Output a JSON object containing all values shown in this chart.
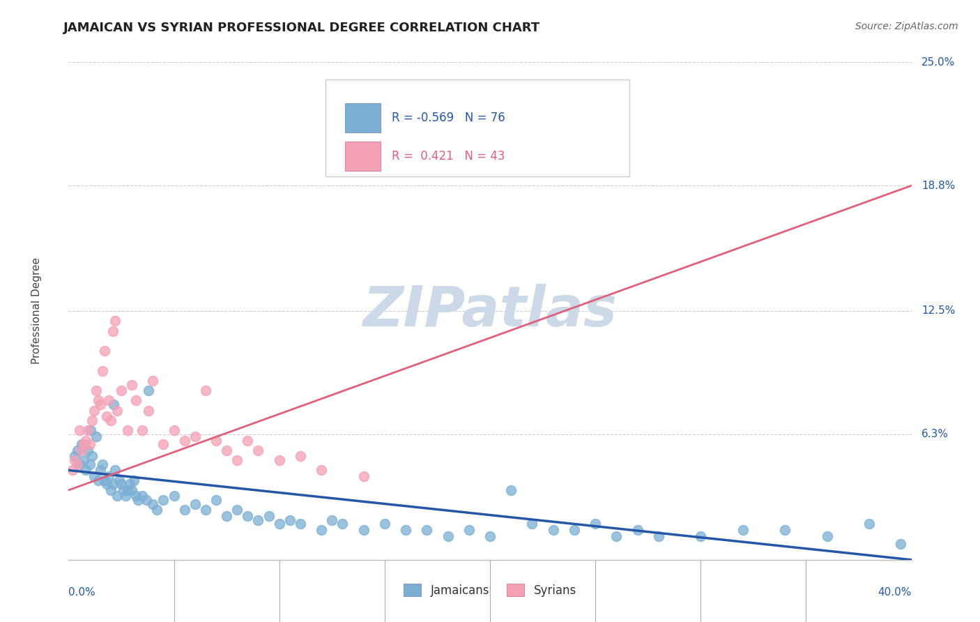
{
  "title": "JAMAICAN VS SYRIAN PROFESSIONAL DEGREE CORRELATION CHART",
  "source_text": "Source: ZipAtlas.com",
  "ylabel": "Professional Degree",
  "xlim": [
    0.0,
    40.0
  ],
  "ylim": [
    0.0,
    25.0
  ],
  "ytick_values": [
    6.3,
    12.5,
    18.8,
    25.0
  ],
  "ytick_labels": [
    "6.3%",
    "12.5%",
    "18.8%",
    "25.0%"
  ],
  "jamaican_R": -0.569,
  "jamaican_N": 76,
  "syrian_R": 0.421,
  "syrian_N": 43,
  "jamaican_color": "#7bafd4",
  "syrian_color": "#f4a0b5",
  "jamaican_line_color": "#2457a8",
  "syrian_line_color": "#e0607a",
  "legend_jamaican": "Jamaicans",
  "legend_syrian": "Syrians",
  "watermark_color": "#ccd9e8",
  "background_color": "#ffffff",
  "grid_color": "#cccccc",
  "title_color": "#222222",
  "axis_label_color": "#2457a8",
  "jamaican_x": [
    0.3,
    0.5,
    0.6,
    0.7,
    0.8,
    0.9,
    1.0,
    1.1,
    1.2,
    1.3,
    1.4,
    1.5,
    1.6,
    1.7,
    1.8,
    1.9,
    2.0,
    2.1,
    2.2,
    2.3,
    2.4,
    2.5,
    2.6,
    2.7,
    2.8,
    2.9,
    3.0,
    3.1,
    3.2,
    3.3,
    3.5,
    3.7,
    4.0,
    4.2,
    4.5,
    5.0,
    5.5,
    6.0,
    6.5,
    7.0,
    7.5,
    8.0,
    8.5,
    9.0,
    9.5,
    10.0,
    10.5,
    11.0,
    12.0,
    12.5,
    13.0,
    14.0,
    15.0,
    16.0,
    17.0,
    18.0,
    19.0,
    20.0,
    21.0,
    22.0,
    23.0,
    24.0,
    25.0,
    26.0,
    27.0,
    28.0,
    30.0,
    32.0,
    34.0,
    36.0,
    38.0,
    39.5,
    0.4,
    1.05,
    2.15,
    3.8
  ],
  "jamaican_y": [
    5.2,
    4.8,
    5.8,
    5.0,
    4.5,
    5.5,
    4.8,
    5.2,
    4.2,
    6.2,
    4.0,
    4.5,
    4.8,
    4.0,
    3.8,
    4.2,
    3.5,
    3.8,
    4.5,
    3.2,
    4.0,
    3.8,
    3.5,
    3.2,
    3.5,
    3.8,
    3.5,
    4.0,
    3.2,
    3.0,
    3.2,
    3.0,
    2.8,
    2.5,
    3.0,
    3.2,
    2.5,
    2.8,
    2.5,
    3.0,
    2.2,
    2.5,
    2.2,
    2.0,
    2.2,
    1.8,
    2.0,
    1.8,
    1.5,
    2.0,
    1.8,
    1.5,
    1.8,
    1.5,
    1.5,
    1.2,
    1.5,
    1.2,
    3.5,
    1.8,
    1.5,
    1.5,
    1.8,
    1.2,
    1.5,
    1.2,
    1.2,
    1.5,
    1.5,
    1.2,
    1.8,
    0.8,
    5.5,
    6.5,
    7.8,
    8.5
  ],
  "syrian_x": [
    0.2,
    0.3,
    0.4,
    0.5,
    0.6,
    0.7,
    0.8,
    0.9,
    1.0,
    1.1,
    1.2,
    1.3,
    1.4,
    1.5,
    1.6,
    1.7,
    1.8,
    1.9,
    2.0,
    2.1,
    2.2,
    2.3,
    2.5,
    2.8,
    3.0,
    3.2,
    3.5,
    3.8,
    4.0,
    4.5,
    5.0,
    5.5,
    6.0,
    6.5,
    7.0,
    7.5,
    8.0,
    8.5,
    9.0,
    10.0,
    11.0,
    12.0,
    14.0
  ],
  "syrian_y": [
    4.5,
    5.0,
    4.8,
    6.5,
    5.5,
    5.8,
    6.0,
    6.5,
    5.8,
    7.0,
    7.5,
    8.5,
    8.0,
    7.8,
    9.5,
    10.5,
    7.2,
    8.0,
    7.0,
    11.5,
    12.0,
    7.5,
    8.5,
    6.5,
    8.8,
    8.0,
    6.5,
    7.5,
    9.0,
    5.8,
    6.5,
    6.0,
    6.2,
    8.5,
    6.0,
    5.5,
    5.0,
    6.0,
    5.5,
    5.0,
    5.2,
    4.5,
    4.2
  ],
  "jamaican_line_y0": 4.5,
  "jamaican_line_y1": 0.0,
  "syrian_line_y0": 3.5,
  "syrian_line_y1": 18.8
}
